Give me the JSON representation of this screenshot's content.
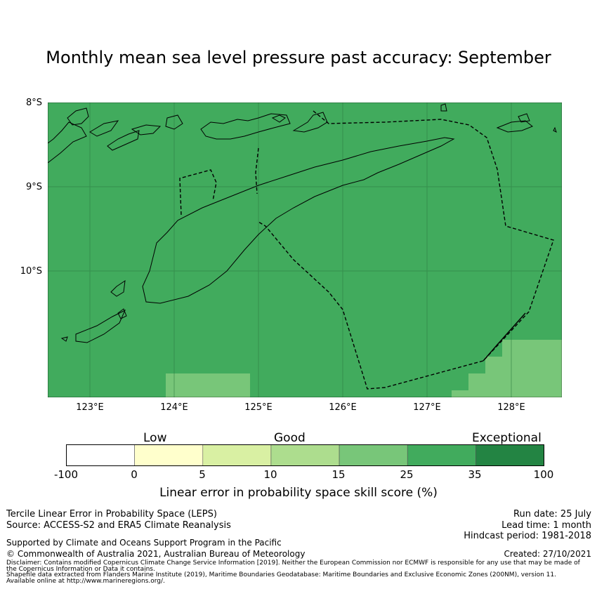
{
  "title": "Monthly mean sea level pressure past accuracy: September",
  "map": {
    "lat_labels": [
      "8°S",
      "9°S",
      "10°S"
    ],
    "lon_labels": [
      "123°E",
      "124°E",
      "125°E",
      "126°E",
      "127°E",
      "128°E"
    ],
    "extent": {
      "lon": [
        122.5,
        128.6
      ],
      "lat": [
        -11.5,
        -8.0
      ]
    },
    "background_color": "#41ab5d",
    "lighter_patch_color": "#78c679",
    "gridlines": true
  },
  "legend": {
    "categories": [
      "Low",
      "Good",
      "Exceptional"
    ],
    "ticks": [
      "-100",
      "0",
      "5",
      "10",
      "15",
      "25",
      "35",
      "100"
    ],
    "colors": [
      "#ffffff",
      "#ffffcc",
      "#d9f0a3",
      "#addd8e",
      "#78c679",
      "#41ab5d",
      "#238443"
    ],
    "title": "Linear error in probability space skill score (%)"
  },
  "footer": {
    "method": "Tercile Linear Error in Probability Space (LEPS)",
    "source": "Source: ACCESS-S2 and ERA5 Climate Reanalysis",
    "support": "Supported by Climate and Oceans Support Program in the Pacific",
    "copyright": "© Commonwealth of Australia 2021, Australian Bureau of Meteorology",
    "disclaimer_1": "Disclaimer: Contains modified Copernicus Climate Change Service Information [2019]. Neither the European Commission nor ECMWF is responsible for any use that may be made of",
    "disclaimer_2": "the Copernicus Information or Data it contains.",
    "shapefile_1": "Shapefile data extracted from Flanders Marine Institute (2019), Maritime Boundaries Geodatabase: Maritime Boundaries and Exclusive Economic Zones (200NM), version 11.",
    "shapefile_2": "Available online at http://www.marineregions.org/.",
    "run_date": "Run date: 25 July",
    "lead_time": "Lead time: 1 month",
    "hindcast": "Hindcast period: 1981-2018",
    "created": "Created: 27/10/2021"
  }
}
